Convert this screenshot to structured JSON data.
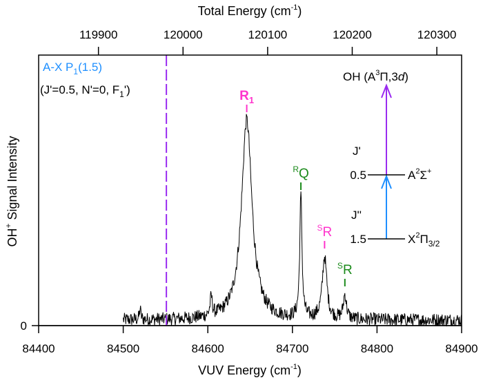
{
  "chart_data": {
    "type": "line",
    "xlabel": {
      "main": "VUV Energy (cm",
      "sup": "-1",
      "end": ")"
    },
    "x2label": {
      "main": "Total Energy (cm",
      "sup": "-1",
      "end": ")"
    },
    "ylabel": {
      "pre": "OH",
      "sup": "+",
      "main": " Signal Intensity"
    },
    "xlim": [
      84400,
      84900
    ],
    "x_ticks": [
      "84400",
      "84500",
      "84600",
      "84700",
      "84800",
      "84900"
    ],
    "x2_offset": 35429.3,
    "x2_ticks": [
      "119900",
      "120000",
      "120100",
      "120200",
      "120300"
    ],
    "ylim": [
      0,
      1
    ],
    "y_ticks": [
      "0"
    ],
    "spectrum": {
      "x_start": 84500,
      "x_end": 84900,
      "baseline": 0.02,
      "noise": 0.025,
      "peaks": [
        {
          "center": 84646,
          "height": 0.74,
          "hwhm": 7.5
        },
        {
          "center": 84710,
          "height": 0.45,
          "hwhm": 1.6
        },
        {
          "center": 84738,
          "height": 0.23,
          "hwhm": 3.2
        },
        {
          "center": 84762,
          "height": 0.09,
          "hwhm": 2.2
        },
        {
          "center": 84604,
          "height": 0.07,
          "hwhm": 1.5
        },
        {
          "center": 84520,
          "height": 0.04,
          "hwhm": 1.0
        }
      ]
    },
    "line_color": "#000000",
    "marker_line": {
      "x": 84551,
      "color": "#9a2bf0"
    },
    "annotations": [
      {
        "x": 84646,
        "main": "R",
        "sub": "1",
        "sup": "",
        "color": "#ff33cc"
      },
      {
        "x": 84710,
        "main": "Q",
        "sub": "",
        "sup": "R",
        "color": "#1a8a1a"
      },
      {
        "x": 84738,
        "main": "R",
        "sub": "",
        "sup": "S",
        "color": "#ff33cc"
      },
      {
        "x": 84762,
        "main": "R",
        "sub": "",
        "sup": "S",
        "color": "#1a8a1a"
      }
    ],
    "transition_label": {
      "main": "A-X P",
      "sub": "1",
      "end": "(1.5)",
      "color": "#1e8fff"
    },
    "state_label": {
      "pre": "(J'=0.5, N'=0, F",
      "sub": "1",
      "end": "')"
    },
    "diagram": {
      "title": {
        "pre": "OH (A",
        "sup": "3",
        "mid": "Π,3",
        "ital": "d",
        "end": ")"
      },
      "upper": {
        "j_label": "J'",
        "j_value": "0.5",
        "state": "A",
        "sup": "2",
        "sym": "Σ",
        "sup2": "+"
      },
      "lower": {
        "j_label": "J''",
        "j_value": "1.5",
        "state": "X",
        "sup": "2",
        "sym": "Π",
        "sub": "3/2"
      },
      "arrow1_color": "#1e8fff",
      "arrow2_color": "#9a2bf0"
    }
  }
}
